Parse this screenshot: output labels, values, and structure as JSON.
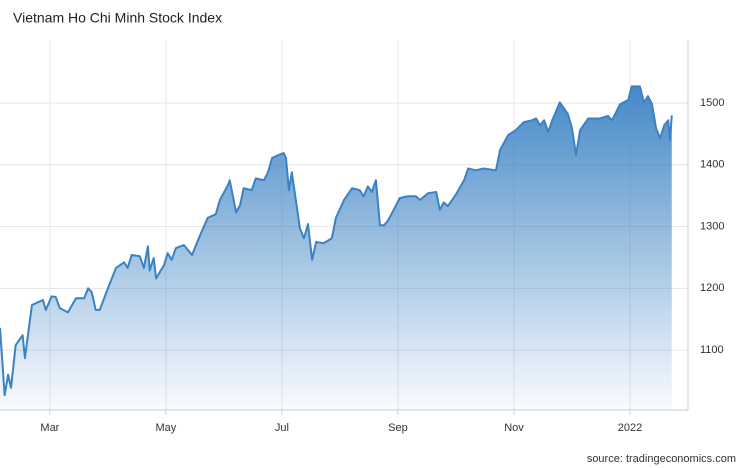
{
  "chart_data": {
    "type": "area",
    "title": "Vietnam Ho Chi Minh Stock Index",
    "source": "source: tradingeconomics.com",
    "color": "#3b82c4",
    "grid": true,
    "x": [
      2.14,
      2.22,
      2.28,
      2.33,
      2.41,
      2.53,
      2.57,
      2.69,
      2.88,
      2.93,
      3.03,
      3.1,
      3.17,
      3.31,
      3.45,
      3.59,
      3.66,
      3.72,
      3.79,
      3.86,
      4.0,
      4.14,
      4.28,
      4.34,
      4.41,
      4.55,
      4.62,
      4.69,
      4.72,
      4.79,
      4.83,
      4.97,
      5.03,
      5.1,
      5.17,
      5.31,
      5.45,
      5.59,
      5.72,
      5.86,
      5.93,
      6.07,
      6.1,
      6.21,
      6.28,
      6.34,
      6.48,
      6.55,
      6.69,
      6.76,
      6.83,
      6.97,
      7.03,
      7.07,
      7.12,
      7.17,
      7.24,
      7.31,
      7.38,
      7.45,
      7.52,
      7.59,
      7.72,
      7.86,
      7.93,
      8.07,
      8.21,
      8.34,
      8.41,
      8.48,
      8.55,
      8.62,
      8.69,
      8.76,
      8.83,
      8.97,
      9.03,
      9.17,
      9.31,
      9.38,
      9.52,
      9.66,
      9.72,
      9.79,
      9.86,
      10.0,
      10.14,
      10.21,
      10.34,
      10.48,
      10.69,
      10.76,
      10.9,
      11.03,
      11.17,
      11.31,
      11.38,
      11.45,
      11.52,
      11.59,
      11.66,
      11.79,
      11.93,
      12.0,
      12.07,
      12.14,
      12.28,
      12.48,
      12.62,
      12.69,
      12.83,
      12.97,
      13.03,
      13.17,
      13.24,
      13.31,
      13.38,
      13.45,
      13.52,
      13.59,
      13.66,
      13.69,
      13.72
    ],
    "values": [
      1136,
      1027,
      1060,
      1039,
      1108,
      1124,
      1087,
      1173,
      1181,
      1165,
      1187,
      1186,
      1168,
      1161,
      1184,
      1184,
      1200,
      1194,
      1165,
      1165,
      1200,
      1233,
      1242,
      1233,
      1254,
      1252,
      1233,
      1268,
      1229,
      1249,
      1216,
      1238,
      1257,
      1246,
      1265,
      1270,
      1254,
      1286,
      1314,
      1320,
      1343,
      1367,
      1375,
      1323,
      1335,
      1362,
      1359,
      1378,
      1375,
      1388,
      1411,
      1417,
      1419,
      1411,
      1359,
      1388,
      1343,
      1297,
      1281,
      1304,
      1246,
      1275,
      1273,
      1281,
      1314,
      1343,
      1362,
      1359,
      1349,
      1365,
      1356,
      1375,
      1302,
      1302,
      1310,
      1335,
      1346,
      1349,
      1349,
      1343,
      1354,
      1356,
      1327,
      1339,
      1333,
      1352,
      1375,
      1394,
      1391,
      1394,
      1391,
      1424,
      1448,
      1456,
      1469,
      1472,
      1475,
      1464,
      1472,
      1453,
      1472,
      1501,
      1482,
      1459,
      1416,
      1456,
      1475,
      1475,
      1479,
      1472,
      1498,
      1505,
      1527,
      1527,
      1501,
      1511,
      1498,
      1459,
      1443,
      1464,
      1472,
      1440,
      1480
    ],
    "xlim": [
      2.14,
      14.0
    ],
    "xticks": [
      {
        "value": 3,
        "label": "Mar"
      },
      {
        "value": 5,
        "label": "May"
      },
      {
        "value": 7,
        "label": "Jul"
      },
      {
        "value": 9,
        "label": "Sep"
      },
      {
        "value": 11,
        "label": "Nov"
      },
      {
        "value": 13,
        "label": "2022"
      }
    ],
    "ylim": [
      1003,
      1602
    ],
    "yticks": [
      1100,
      1200,
      1300,
      1400,
      1500
    ]
  }
}
